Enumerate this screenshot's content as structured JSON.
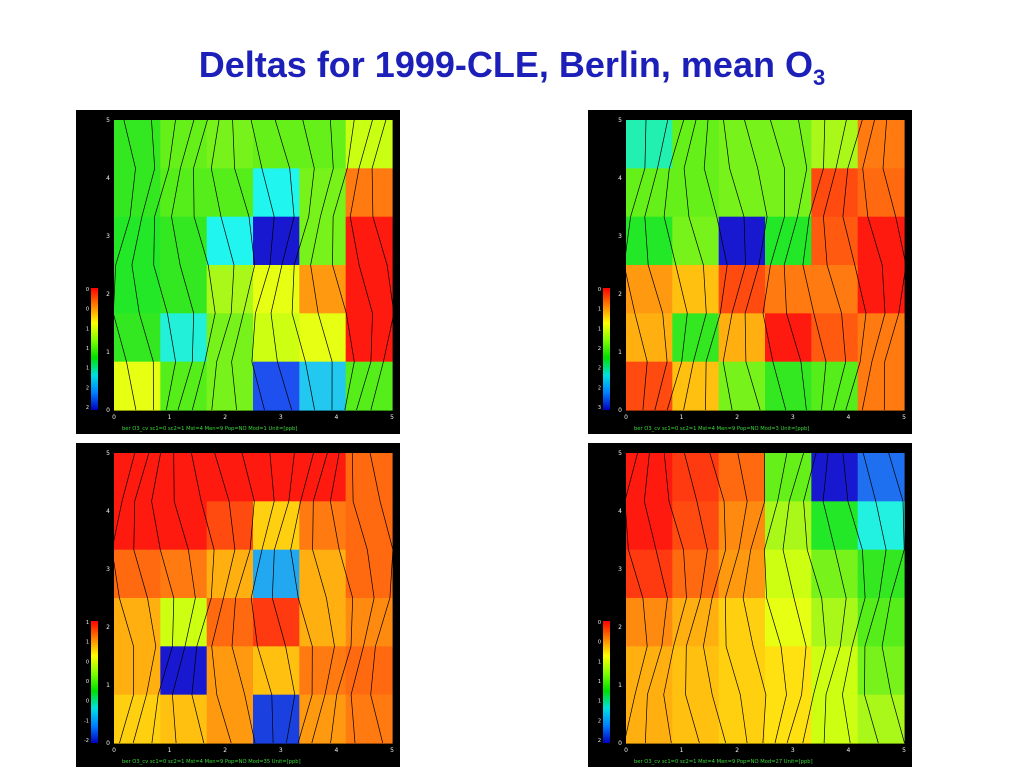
{
  "slide": {
    "title_main": "Deltas for 1999-CLE, Berlin, mean O",
    "title_sub": "3"
  },
  "colors": {
    "title": "#1c1fb8",
    "panel_bg": "#000000",
    "axis_text": "#f2f2f2",
    "footer_text": "#39d839"
  },
  "chart_data": [
    {
      "type": "heatmap",
      "x": [
        0,
        1,
        2,
        3,
        4,
        5
      ],
      "y": [
        0,
        1,
        2,
        3,
        4,
        5
      ],
      "xlim": [
        0,
        5
      ],
      "ylim": [
        0,
        5
      ],
      "colorbar_ticks": [
        "0",
        "0",
        "1",
        "1",
        "1",
        "2",
        "2"
      ],
      "footer": "ber O3_cv sc1=0 sc2=1 Mst=4 Men=9 Pop=NO Mod=1 Unit=[ppb]",
      "rows_top_to_bottom": [
        [
          "#33e820",
          "#66f01a",
          "#77f21a",
          "#66f01a",
          "#66f01a",
          "#c8ff12"
        ],
        [
          "#33e820",
          "#55ee1a",
          "#55ee1a",
          "#20f5f0",
          "#77f21a",
          "#ff7a10"
        ],
        [
          "#22e828",
          "#33e820",
          "#20f5f0",
          "#1818d0",
          "#77f21a",
          "#ff1a10"
        ],
        [
          "#22e828",
          "#33e820",
          "#aaf71a",
          "#e6ff12",
          "#ff9a10",
          "#ff1a10"
        ],
        [
          "#33e820",
          "#22f0d8",
          "#77f21a",
          "#ccff12",
          "#e6ff12",
          "#ff1a10"
        ],
        [
          "#e6ff12",
          "#55ee1a",
          "#77f21a",
          "#1e50f0",
          "#22c8f0",
          "#55ee1a"
        ]
      ]
    },
    {
      "type": "heatmap",
      "x": [
        0,
        1,
        2,
        3,
        4,
        5
      ],
      "y": [
        0,
        1,
        2,
        3,
        4,
        5
      ],
      "xlim": [
        0,
        5
      ],
      "ylim": [
        0,
        5
      ],
      "colorbar_ticks": [
        "0",
        "1",
        "1",
        "2",
        "2",
        "2",
        "3"
      ],
      "footer": "ber O3_cv sc1=0 sc2=1 Mst=4 Men=9 Pop=NO Mod=3 Unit=[ppb]",
      "rows_top_to_bottom": [
        [
          "#22f0b0",
          "#66f01a",
          "#77f21a",
          "#77f21a",
          "#aaf71a",
          "#ff7a10"
        ],
        [
          "#66f01a",
          "#66f01a",
          "#77f21a",
          "#77f21a",
          "#ff4a10",
          "#ff6a10"
        ],
        [
          "#22e828",
          "#77f21a",
          "#1818d0",
          "#22e828",
          "#ff5a10",
          "#ff1a10"
        ],
        [
          "#ff9a10",
          "#ffc010",
          "#ff4a10",
          "#ff7a10",
          "#ff7a10",
          "#ff1a10"
        ],
        [
          "#ffb010",
          "#33e820",
          "#ffb010",
          "#ff1a10",
          "#ff5a10",
          "#ff7a10"
        ],
        [
          "#ff4a10",
          "#ffc010",
          "#77f21a",
          "#33e820",
          "#55ee1a",
          "#ff7a10"
        ]
      ]
    },
    {
      "type": "heatmap",
      "x": [
        0,
        1,
        2,
        3,
        4,
        5
      ],
      "y": [
        0,
        1,
        2,
        3,
        4,
        5
      ],
      "xlim": [
        0,
        5
      ],
      "ylim": [
        0,
        5
      ],
      "colorbar_ticks": [
        "1",
        "1",
        "0",
        "0",
        "0",
        "-1",
        "-2"
      ],
      "footer": "ber O3_cv sc1=0 sc2=1 Mst=4 Men=9 Pop=NO Mod=35 Unit=[ppb]",
      "rows_top_to_bottom": [
        [
          "#ff1a10",
          "#ff1a10",
          "#ff1a10",
          "#ff1a10",
          "#ff1a10",
          "#ff6a10"
        ],
        [
          "#ff1a10",
          "#ff1a10",
          "#ff4a10",
          "#ffd010",
          "#ff7a10",
          "#ff6a10"
        ],
        [
          "#ff6a10",
          "#ff7a10",
          "#ffb010",
          "#22a8f0",
          "#ffb010",
          "#ff6a10"
        ],
        [
          "#ffb010",
          "#ccff12",
          "#ff6a10",
          "#ff3a10",
          "#ffb010",
          "#ff8a10"
        ],
        [
          "#ffb010",
          "#1818d0",
          "#ff9a10",
          "#ffc010",
          "#ff7a10",
          "#ff6a10"
        ],
        [
          "#ffd010",
          "#ffc010",
          "#ff9a10",
          "#1a40e0",
          "#ff9a10",
          "#ff7a10"
        ]
      ]
    },
    {
      "type": "heatmap",
      "x": [
        0,
        1,
        2,
        3,
        4,
        5
      ],
      "y": [
        0,
        1,
        2,
        3,
        4,
        5
      ],
      "xlim": [
        0,
        5
      ],
      "ylim": [
        0,
        5
      ],
      "colorbar_ticks": [
        "0",
        "0",
        "1",
        "1",
        "1",
        "2",
        "2"
      ],
      "footer": "ber O3_cv sc1=0 sc2=1 Mst=4 Men=9 Pop=NO Mod=27 Unit=[ppb]",
      "rows_top_to_bottom": [
        [
          "#ff1a10",
          "#ff3a10",
          "#ff6a10",
          "#66f01a",
          "#1818d0",
          "#1e70f0"
        ],
        [
          "#ff1a10",
          "#ff4a10",
          "#ff8a10",
          "#aaf71a",
          "#22e828",
          "#22f0e0"
        ],
        [
          "#ff3a10",
          "#ff6a10",
          "#ff9a10",
          "#ccff12",
          "#77f21a",
          "#33e820"
        ],
        [
          "#ff8a10",
          "#ffb010",
          "#ffd010",
          "#e6ff12",
          "#aaf71a",
          "#55ee1a"
        ],
        [
          "#ffb010",
          "#ffc010",
          "#ffd010",
          "#ffe010",
          "#ccff12",
          "#77f21a"
        ],
        [
          "#ffb010",
          "#ffc010",
          "#ffd010",
          "#ffe010",
          "#ccff12",
          "#aaf71a"
        ]
      ]
    }
  ]
}
